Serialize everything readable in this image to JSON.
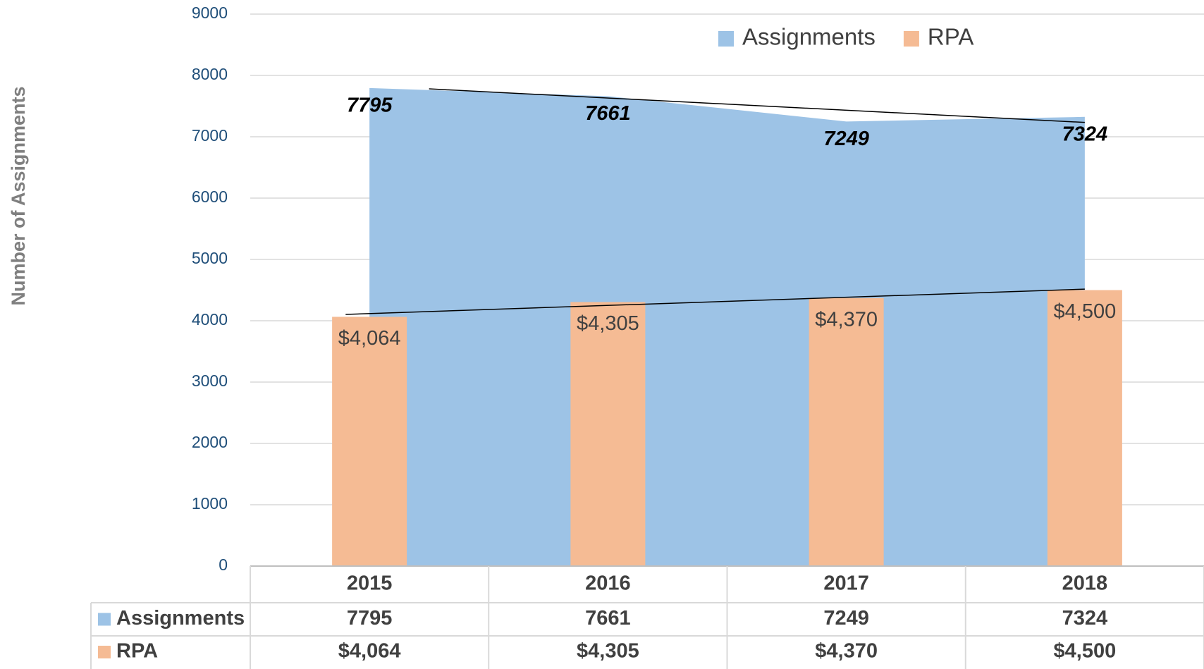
{
  "chart_data": {
    "type": "combo",
    "y_label": "Number of Assignments",
    "categories": [
      "2015",
      "2016",
      "2017",
      "2018"
    ],
    "series": [
      {
        "name": "Assignments",
        "type": "area",
        "color": "#9dc3e6",
        "values": [
          7795,
          7661,
          7249,
          7324
        ]
      },
      {
        "name": "RPA",
        "type": "bar",
        "color": "#f5bb94",
        "values": [
          4064,
          4305,
          4370,
          4500
        ],
        "value_labels": [
          "$4,064",
          "$4,305",
          "$4,370",
          "$4,500"
        ]
      }
    ],
    "ylim": [
      0,
      9000
    ],
    "yticks": [
      0,
      1000,
      2000,
      3000,
      4000,
      5000,
      6000,
      7000,
      8000,
      9000
    ],
    "grid": true,
    "legend": "top-right",
    "trendline": true,
    "data_table": true
  }
}
